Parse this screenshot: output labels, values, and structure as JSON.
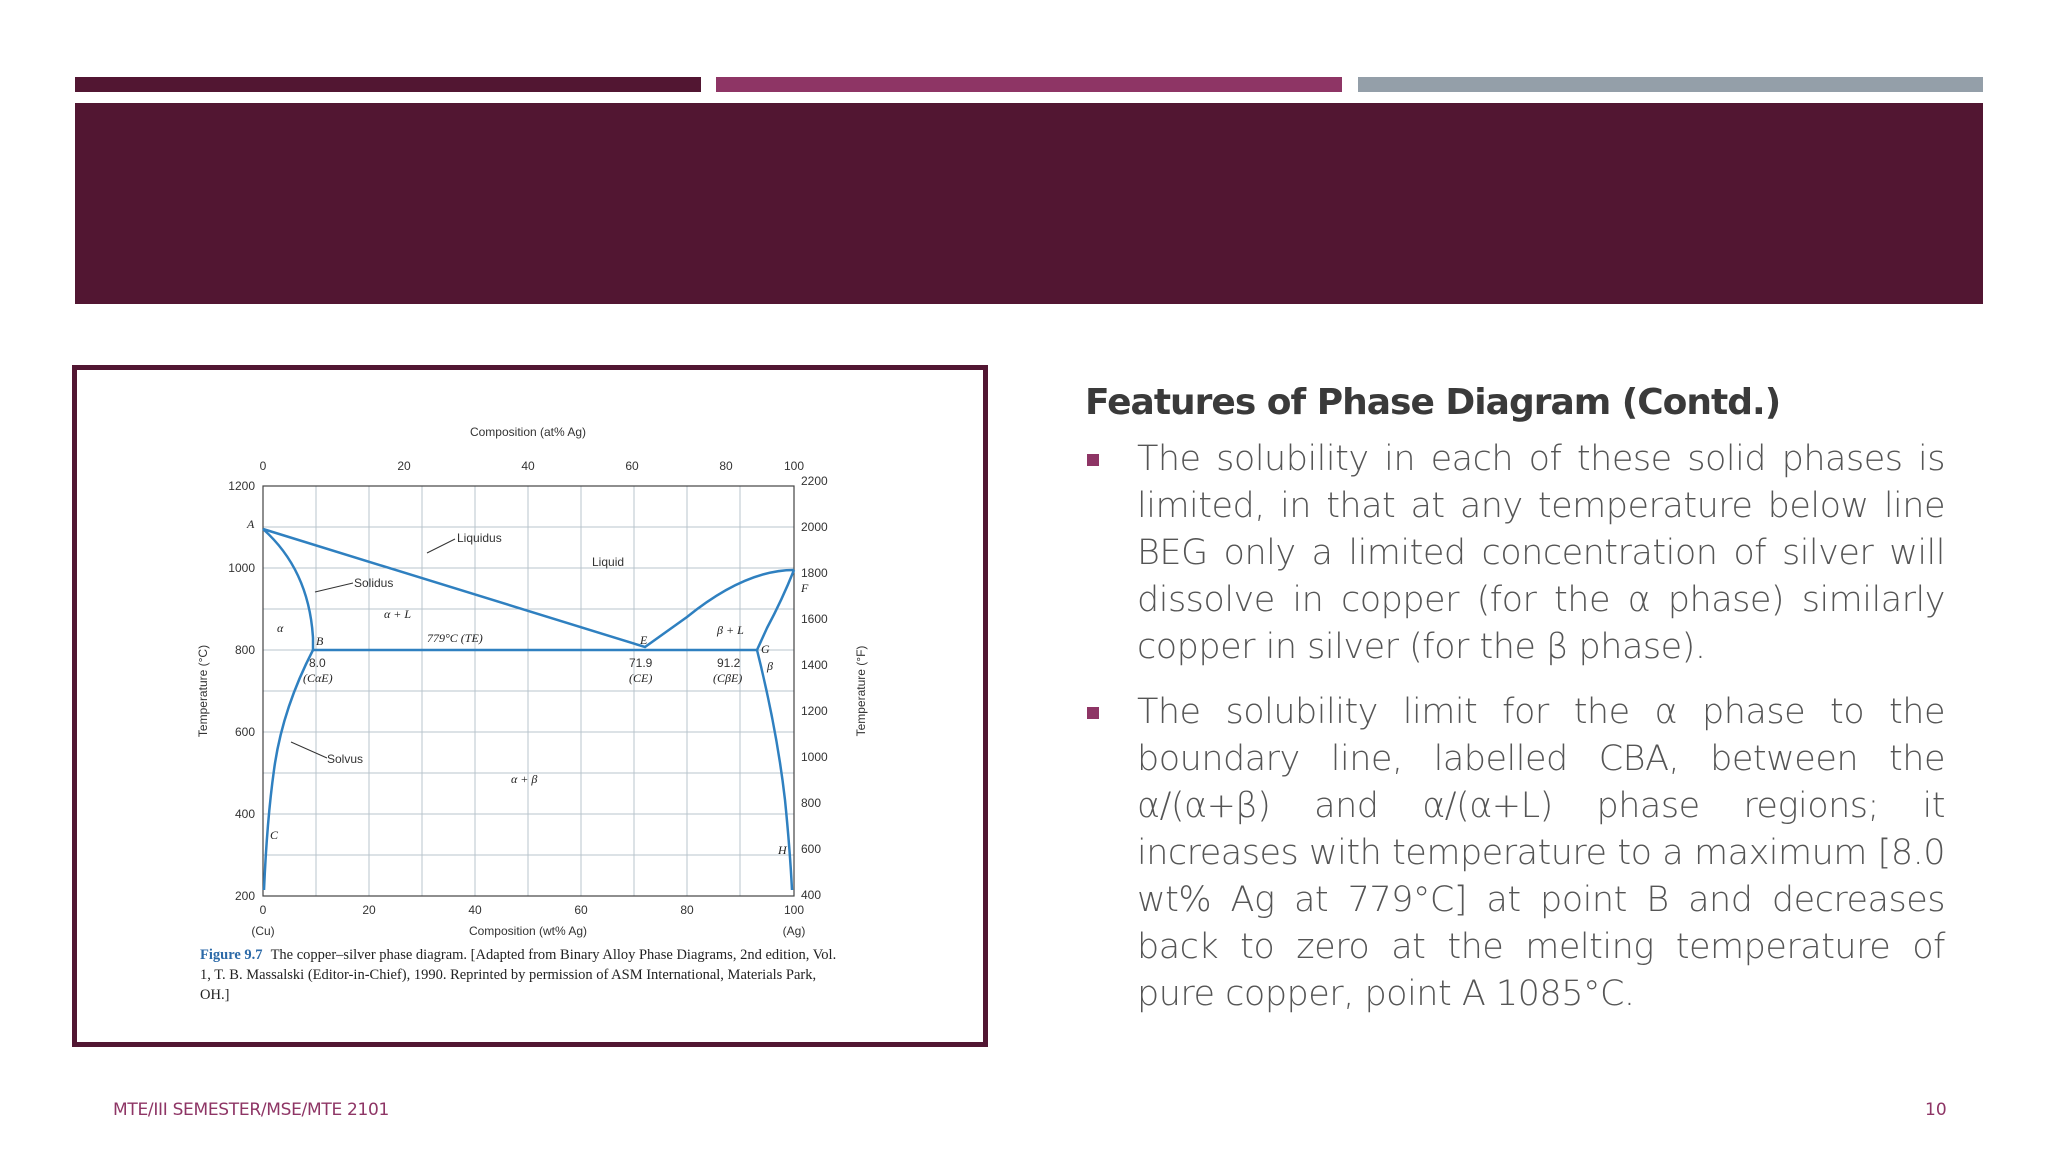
{
  "colors": {
    "primary": "#521632",
    "accent": "#8e3565",
    "gray": "#949fa9",
    "curve": "#2f80c0"
  },
  "slide": {
    "heading": "Features of Phase Diagram (Contd.)",
    "bullets": [
      "The solubility in each of these solid phases is limited, in that at any temperature below line BEG only a limited concentration of silver will dissolve in copper (for the α phase) similarly copper in silver (for the β phase).",
      "The solubility limit for the α phase to the boundary line, labelled CBA, between the α/(α+β) and α/(α+L) phase regions; it increases with temperature to a maximum [8.0 wt% Ag at 779°C] at point B and decreases back to zero at the melting temperature of pure copper, point A 1085°C."
    ],
    "footer": "MTE/III SEMESTER/MSE/MTE 2101",
    "page_number": "10"
  },
  "figure": {
    "caption_number": "Figure 9.7",
    "caption_text": "The copper–silver phase diagram. [Adapted from Binary Alloy Phase Diagrams, 2nd edition, Vol. 1, T. B. Massalski (Editor-in-Chief), 1990. Reprinted by permission of ASM International, Materials Park, OH.]",
    "top_axis_label": "Composition (at% Ag)",
    "top_ticks": [
      "0",
      "20",
      "40",
      "60",
      "80",
      "100"
    ],
    "bottom_axis_label": "Composition (wt% Ag)",
    "bottom_ticks": [
      "0",
      "20",
      "40",
      "60",
      "80",
      "100"
    ],
    "bottom_end_left": "(Cu)",
    "bottom_end_right": "(Ag)",
    "left_axis_label": "Temperature (°C)",
    "left_ticks": [
      "1200",
      "1000",
      "800",
      "600",
      "400",
      "200"
    ],
    "right_axis_label": "Temperature (°F)",
    "right_ticks": [
      "2200",
      "2000",
      "1800",
      "1600",
      "1400",
      "1200",
      "1000",
      "800",
      "600",
      "400"
    ],
    "region_labels": {
      "liquid": "Liquid",
      "alpha": "α",
      "beta": "β",
      "alpha_L": "α + L",
      "beta_L": "β + L",
      "alpha_beta": "α + β"
    },
    "line_labels": {
      "liquidus": "Liquidus",
      "solidus": "Solidus",
      "solvus": "Solvus",
      "eutectic": "779°C (TE)"
    },
    "points": {
      "A": "A",
      "B": "B",
      "C": "C",
      "E": "E",
      "F": "F",
      "G": "G",
      "H": "H"
    },
    "compositions": {
      "b_value": "8.0",
      "b_sub": "(CαE)",
      "e_value": "71.9",
      "e_sub": "(CE)",
      "g_value": "91.2",
      "g_sub": "(CβE)"
    }
  }
}
